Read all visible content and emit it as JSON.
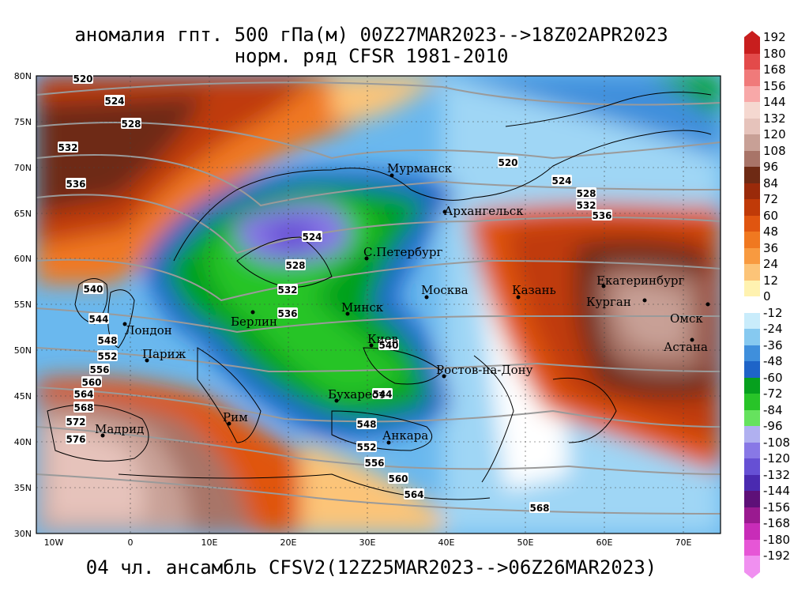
{
  "title": {
    "line1": "аномалия гпт. 500 гПа(м) 00Z27MAR2023-->18Z02APR2023",
    "line2": "норм. ряд CFSR 1981-2010"
  },
  "footer": "04 чл. ансамбль CFSV2(12Z25MAR2023-->06Z26MAR2023)",
  "axes": {
    "lon_labels": [
      "10W",
      "0",
      "10E",
      "20E",
      "30E",
      "40E",
      "50E",
      "60E",
      "70E"
    ],
    "lat_labels": [
      "80N",
      "75N",
      "70N",
      "65N",
      "60N",
      "55N",
      "50N",
      "45N",
      "40N",
      "35N",
      "30N"
    ]
  },
  "legend": {
    "labels": [
      "192",
      "180",
      "168",
      "156",
      "144",
      "132",
      "120",
      "108",
      "96",
      "84",
      "72",
      "60",
      "48",
      "36",
      "24",
      "12",
      "0",
      "-12",
      "-24",
      "-36",
      "-48",
      "-60",
      "-72",
      "-84",
      "-96",
      "-108",
      "-120",
      "-132",
      "-144",
      "-156",
      "-168",
      "-180",
      "-192"
    ],
    "colors": [
      "#c81e1e",
      "#e34a4a",
      "#f07a7a",
      "#f8a8a8",
      "#f5d8d0",
      "#e6c3bb",
      "#c8a096",
      "#a87468",
      "#6e2a14",
      "#9a2a0a",
      "#c03a08",
      "#e05510",
      "#f07820",
      "#f89a40",
      "#fcc478",
      "#fff2b0",
      "#ffffff",
      "#c9ecfb",
      "#86c9f0",
      "#3f8fdc",
      "#1e64c8",
      "#06a01e",
      "#28c428",
      "#66e25e",
      "#b0b0f0",
      "#8878e6",
      "#6650d4",
      "#4a2ab0",
      "#5e1078",
      "#9a1a90",
      "#c82cb8",
      "#e656d6",
      "#f090f0"
    ]
  },
  "cities": [
    {
      "name": "Мурманск"
    },
    {
      "name": "Архангельск"
    },
    {
      "name": "С.Петербург"
    },
    {
      "name": "Москва"
    },
    {
      "name": "Казань"
    },
    {
      "name": "Екатеринбург"
    },
    {
      "name": "Курган"
    },
    {
      "name": "Омск"
    },
    {
      "name": "Астана"
    },
    {
      "name": "Минск"
    },
    {
      "name": "Берлин"
    },
    {
      "name": "Лондон"
    },
    {
      "name": "Париж"
    },
    {
      "name": "Киев"
    },
    {
      "name": "Ростов-на-Дону"
    },
    {
      "name": "Бухарест"
    },
    {
      "name": "Рим"
    },
    {
      "name": "Мадрид"
    },
    {
      "name": "Анкара"
    }
  ],
  "contour_labels": [
    "520",
    "524",
    "528",
    "532",
    "536",
    "520",
    "524",
    "528",
    "532",
    "536",
    "524",
    "528",
    "532",
    "536",
    "540",
    "544",
    "548",
    "552",
    "556",
    "560",
    "564",
    "568",
    "572",
    "576",
    "540",
    "544",
    "548",
    "552",
    "556",
    "560",
    "564",
    "568"
  ]
}
